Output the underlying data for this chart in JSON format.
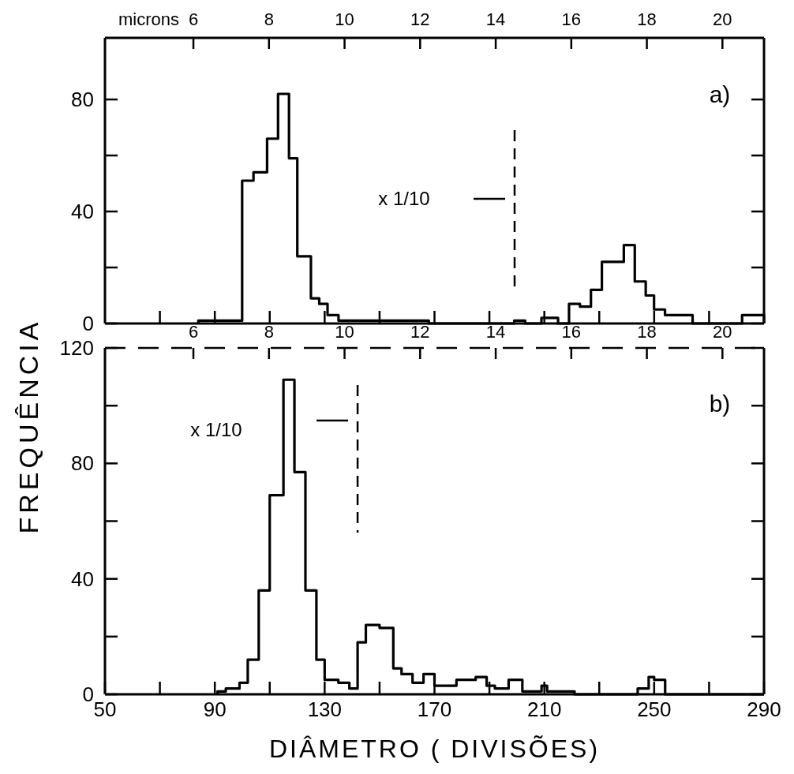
{
  "chart_data": [
    {
      "type": "histogram",
      "color": "#000000",
      "bins": [
        6.13,
        7.29,
        7.59,
        7.95,
        8.24,
        8.53,
        8.75,
        9.11,
        9.33,
        9.55,
        9.84,
        12.23,
        14.49,
        14.78,
        15.21,
        15.65,
        15.94,
        16.23,
        16.52,
        16.81,
        17.03,
        17.39,
        17.68,
        17.97,
        18.19,
        18.48,
        18.85,
        19.21,
        20.52,
        21.1
      ],
      "values": [
        1,
        51,
        54,
        66,
        82,
        59,
        24,
        9,
        7,
        3,
        1,
        0,
        1,
        0,
        2,
        0,
        7,
        6,
        12,
        22,
        22,
        28,
        15,
        10,
        5,
        3,
        3,
        0,
        3
      ],
      "xlim": [
        3.66,
        21.1
      ],
      "xticks": [
        6,
        8,
        10,
        12,
        14,
        16,
        18,
        20
      ],
      "xlabel": "microns",
      "ylim": [
        0,
        102
      ],
      "yticks": [
        0,
        {
          "value": 20,
          "label": null
        },
        40,
        {
          "value": 60,
          "label": null
        },
        80
      ],
      "ref_lines": [
        {
          "axis": "x",
          "value": 14.5,
          "line_style": "dashed"
        }
      ],
      "annotations": [
        "a)",
        "x 1/10"
      ]
    },
    {
      "type": "histogram",
      "color": "#000000",
      "bins": [
        91,
        94,
        99,
        102,
        106,
        110,
        115,
        119,
        123,
        127,
        130,
        135,
        139,
        142,
        145,
        150,
        155,
        158,
        162,
        166,
        170,
        178,
        185,
        189,
        192,
        197,
        202,
        209,
        211,
        221,
        244,
        248,
        250,
        254,
        290
      ],
      "values": [
        1,
        2,
        4,
        12,
        36,
        69,
        109,
        77,
        36,
        12,
        5,
        4,
        2,
        18,
        24,
        23,
        9,
        7,
        4,
        7,
        3,
        5,
        6,
        3,
        2,
        5,
        1,
        3,
        1,
        0,
        2,
        6,
        5,
        0
      ],
      "xlim": [
        50,
        290
      ],
      "xticks": [
        50,
        {
          "value": 70,
          "label": null
        },
        90,
        {
          "value": 110,
          "label": null
        },
        130,
        {
          "value": 150,
          "label": null
        },
        170,
        {
          "value": 190,
          "label": null
        },
        210,
        {
          "value": 230,
          "label": null
        },
        250,
        {
          "value": 270,
          "label": null
        },
        290
      ],
      "x2lim": [
        3.66,
        21.1
      ],
      "x2ticks": [
        6,
        8,
        10,
        12,
        14,
        16,
        18,
        20
      ],
      "xlabel": "DIÂMETRO ( DIVISÕES)",
      "ylabel": "FREQUÊNCIA",
      "ylim": [
        0,
        120
      ],
      "yticks": [
        0,
        {
          "value": 20,
          "label": null
        },
        40,
        {
          "value": 60,
          "label": null
        },
        80,
        {
          "value": 100,
          "label": null
        },
        120
      ],
      "ref_lines": [
        {
          "axis": "x",
          "value": 142,
          "line_style": "dashed"
        }
      ],
      "annotations": [
        "b)",
        "x 1/10"
      ]
    }
  ]
}
